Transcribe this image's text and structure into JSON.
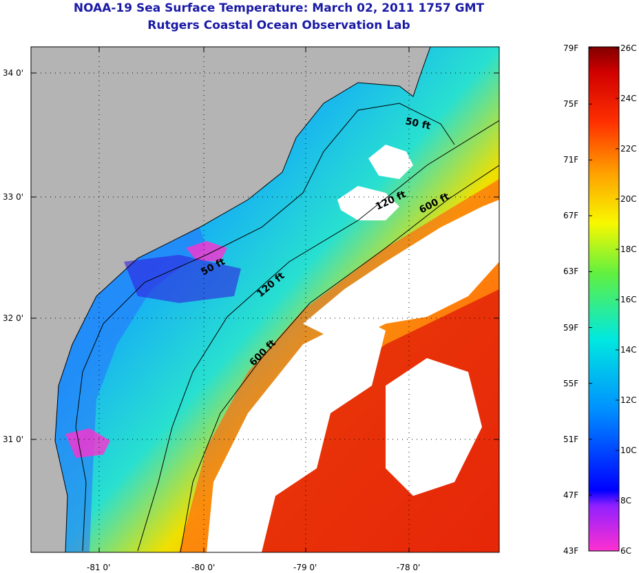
{
  "title": "NOAA-19 Sea Surface Temperature:  March 02, 2011 1757 GMT",
  "subtitle": "Rutgers Coastal Ocean Observation Lab",
  "lat_ticks": [
    "34 0'",
    "33 0'",
    "32 0'",
    "31 0'"
  ],
  "lon_ticks": [
    "-81 0'",
    "-80 0'",
    "-79 0'",
    "-78 0'"
  ],
  "contours": [
    {
      "label": "50 ft",
      "id": "c50a"
    },
    {
      "label": "50 ft",
      "id": "c50b"
    },
    {
      "label": "120 ft",
      "id": "c120a"
    },
    {
      "label": "120 ft",
      "id": "c120b"
    },
    {
      "label": "600 ft",
      "id": "c600a"
    },
    {
      "label": "600 ft",
      "id": "c600b"
    }
  ],
  "colorbar": {
    "fahrenheit": [
      "79F",
      "75F",
      "71F",
      "67F",
      "63F",
      "59F",
      "55F",
      "51F",
      "47F",
      "43F"
    ],
    "celsius": [
      "26C",
      "24C",
      "22C",
      "20C",
      "18C",
      "16C",
      "14C",
      "12C",
      "10C",
      "8C",
      "6C"
    ]
  },
  "colors": {
    "land": "#b4b4b4",
    "cloud": "#ffffff",
    "title": "#1a1aa6"
  }
}
